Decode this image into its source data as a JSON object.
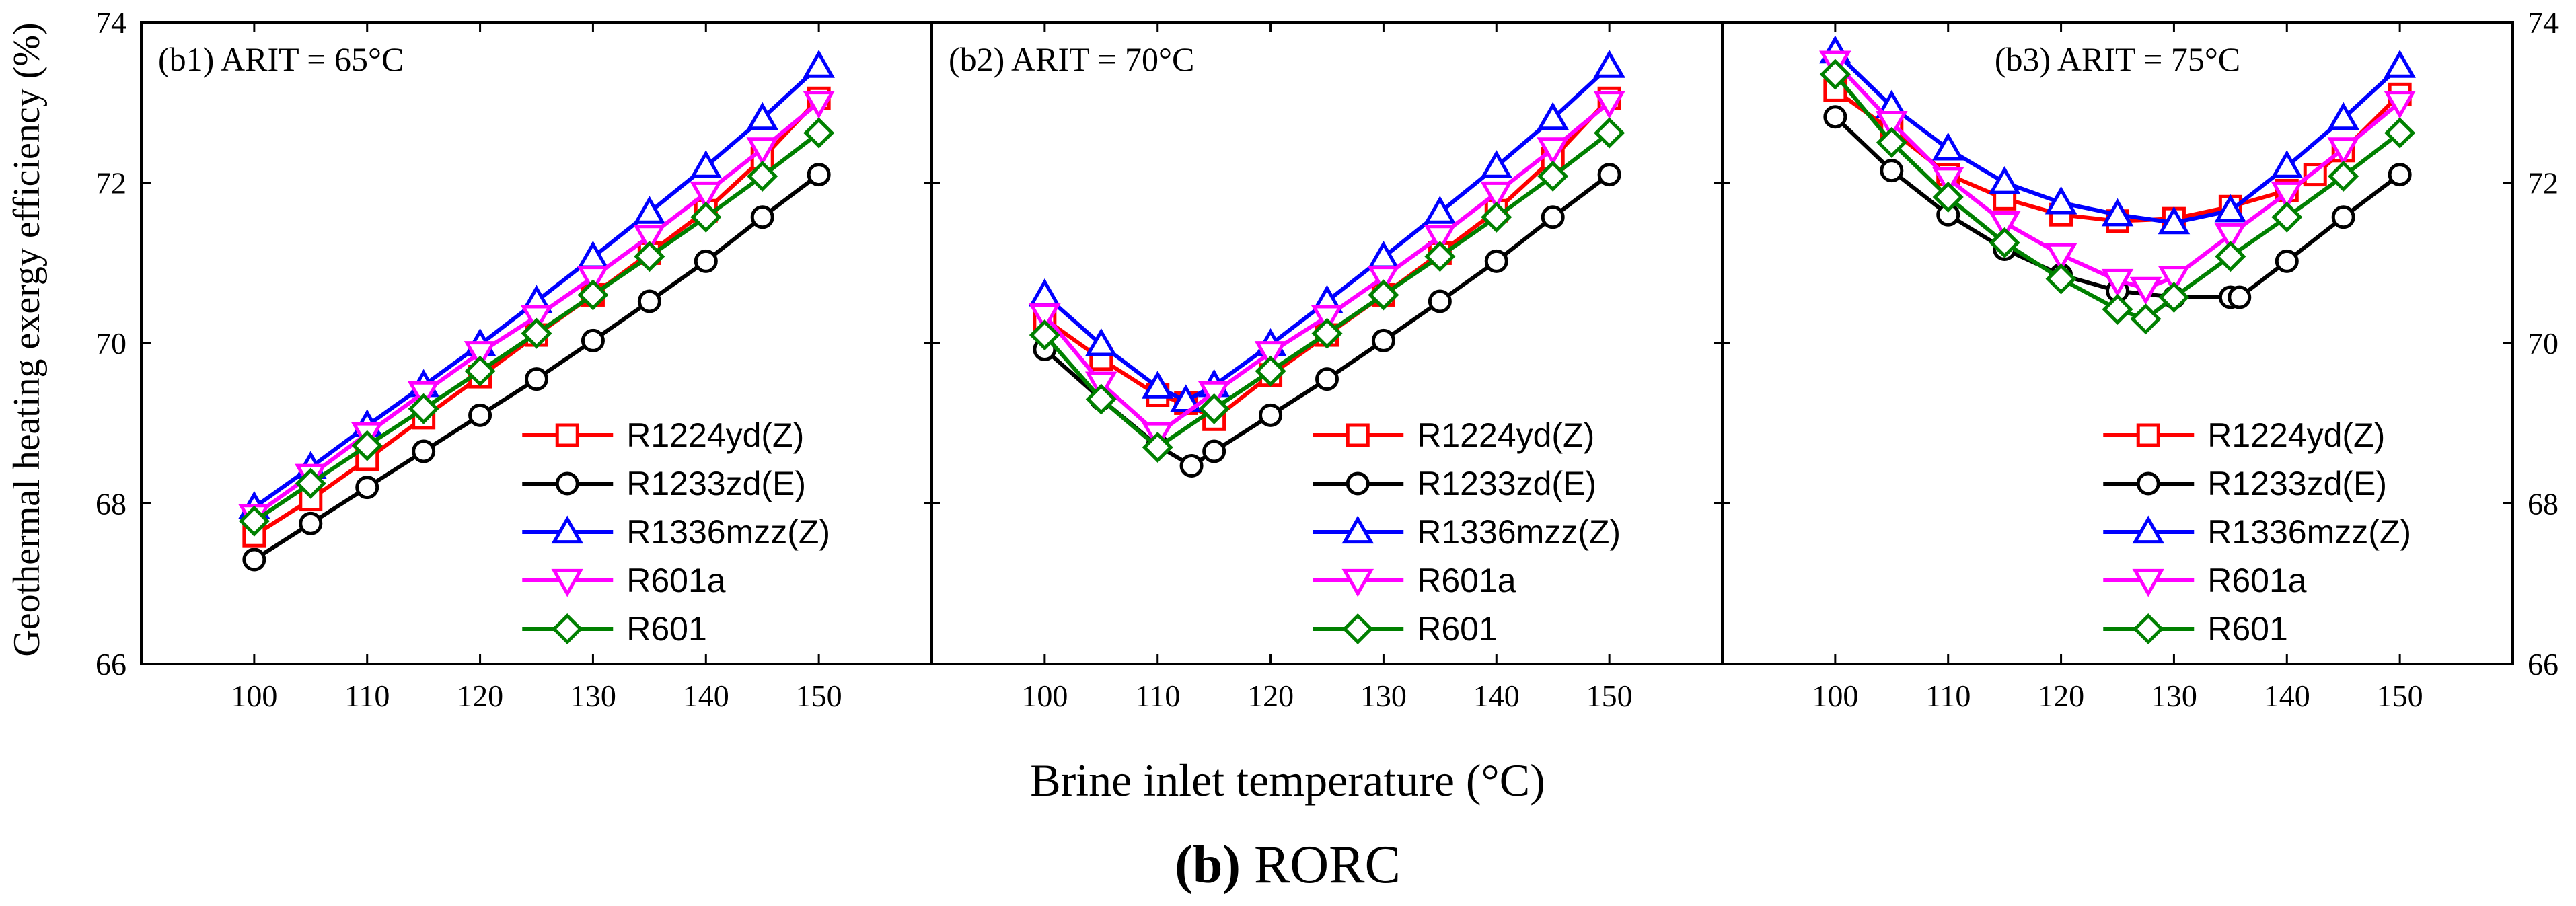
{
  "figure": {
    "ylabel": "Geothermal heating exergy efficiency (%)",
    "xlabel": "Brine inlet temperature (°C)",
    "caption_letter": "b",
    "caption_text": " RORC"
  },
  "colors": {
    "R1224yd(Z)": "#ff0000",
    "R1233zd(E)": "#000000",
    "R1336mzz(Z)": "#0000ff",
    "R601a": "#ff00ff",
    "R601": "#008000"
  },
  "markers": {
    "R1224yd(Z)": "square",
    "R1233zd(E)": "circle",
    "R1336mzz(Z)": "triangle-up",
    "R601a": "triangle-down",
    "R601": "diamond"
  },
  "chart_data": [
    {
      "type": "line",
      "title": "(b1) ARIT = 65°C",
      "xlim": [
        90,
        160
      ],
      "ylim": [
        66,
        74
      ],
      "xticks": [
        100,
        110,
        120,
        130,
        140,
        150
      ],
      "yticks": [
        66,
        68,
        70,
        72,
        74
      ],
      "legend_position": "bottom-right",
      "series": [
        {
          "name": "R1224yd(Z)",
          "x": [
            100,
            105,
            110,
            115,
            120,
            125,
            130,
            135,
            140,
            145,
            150
          ],
          "y": [
            67.6,
            68.05,
            68.55,
            69.07,
            69.58,
            70.1,
            70.6,
            71.12,
            71.65,
            72.3,
            73.05
          ]
        },
        {
          "name": "R1233zd(E)",
          "x": [
            100,
            105,
            110,
            115,
            120,
            125,
            130,
            135,
            140,
            145,
            150
          ],
          "y": [
            67.3,
            67.75,
            68.2,
            68.65,
            69.1,
            69.55,
            70.03,
            70.52,
            71.02,
            71.57,
            72.1
          ]
        },
        {
          "name": "R1336mzz(Z)",
          "x": [
            100,
            105,
            110,
            115,
            120,
            125,
            130,
            135,
            140,
            145,
            150
          ],
          "y": [
            67.95,
            68.45,
            68.97,
            69.47,
            69.98,
            70.52,
            71.07,
            71.63,
            72.2,
            72.8,
            73.45
          ]
        },
        {
          "name": "R601a",
          "x": [
            100,
            105,
            110,
            115,
            120,
            125,
            130,
            135,
            140,
            145,
            150
          ],
          "y": [
            67.85,
            68.35,
            68.87,
            69.38,
            69.88,
            70.33,
            70.82,
            71.33,
            71.87,
            72.42,
            73.0
          ]
        },
        {
          "name": "R601",
          "x": [
            100,
            105,
            110,
            115,
            120,
            125,
            130,
            135,
            140,
            145,
            150
          ],
          "y": [
            67.78,
            68.25,
            68.72,
            69.18,
            69.65,
            70.12,
            70.6,
            71.08,
            71.57,
            72.08,
            72.62
          ]
        }
      ]
    },
    {
      "type": "line",
      "title": "(b2) ARIT = 70°C",
      "xlim": [
        90,
        160
      ],
      "ylim": [
        66,
        74
      ],
      "xticks": [
        100,
        110,
        120,
        130,
        140,
        150
      ],
      "yticks": [
        66,
        68,
        70,
        72,
        74
      ],
      "legend_position": "bottom-right",
      "series": [
        {
          "name": "R1224yd(Z)",
          "x": [
            100,
            105,
            110,
            112.5,
            115,
            120,
            125,
            130,
            135,
            140,
            145,
            150
          ],
          "y": [
            70.3,
            69.8,
            69.35,
            69.25,
            69.05,
            69.6,
            70.1,
            70.6,
            71.12,
            71.65,
            72.3,
            73.05
          ]
        },
        {
          "name": "R1233zd(E)",
          "x": [
            100,
            105,
            110,
            113,
            115,
            120,
            125,
            130,
            135,
            140,
            145,
            150
          ],
          "y": [
            69.92,
            69.3,
            68.72,
            68.47,
            68.65,
            69.1,
            69.55,
            70.03,
            70.52,
            71.02,
            71.57,
            72.1
          ]
        },
        {
          "name": "R1336mzz(Z)",
          "x": [
            100,
            105,
            110,
            112.5,
            115,
            120,
            125,
            130,
            135,
            140,
            145,
            150
          ],
          "y": [
            70.6,
            69.98,
            69.45,
            69.28,
            69.47,
            69.98,
            70.52,
            71.07,
            71.63,
            72.2,
            72.8,
            73.45
          ]
        },
        {
          "name": "R601a",
          "x": [
            100,
            105,
            110,
            115,
            120,
            125,
            130,
            135,
            140,
            145,
            150
          ],
          "y": [
            70.35,
            69.5,
            68.87,
            69.38,
            69.88,
            70.33,
            70.82,
            71.33,
            71.87,
            72.42,
            73.0
          ]
        },
        {
          "name": "R601",
          "x": [
            100,
            105,
            110,
            115,
            120,
            125,
            130,
            135,
            140,
            145,
            150
          ],
          "y": [
            70.1,
            69.3,
            68.7,
            69.18,
            69.65,
            70.12,
            70.6,
            71.08,
            71.57,
            72.08,
            72.62
          ]
        }
      ]
    },
    {
      "type": "line",
      "title": "(b3) ARIT = 75°C",
      "xlim": [
        90,
        160
      ],
      "ylim": [
        66,
        74
      ],
      "xticks": [
        100,
        110,
        120,
        130,
        140,
        150
      ],
      "yticks": [
        66,
        68,
        70,
        72,
        74
      ],
      "legend_position": "bottom-right",
      "series": [
        {
          "name": "R1224yd(Z)",
          "x": [
            100,
            105,
            110,
            115,
            120,
            125,
            130,
            135,
            140,
            142.5,
            145,
            150
          ],
          "y": [
            73.15,
            72.65,
            72.1,
            71.8,
            71.6,
            71.52,
            71.55,
            71.7,
            71.9,
            72.1,
            72.4,
            73.1
          ]
        },
        {
          "name": "R1233zd(E)",
          "x": [
            100,
            105,
            110,
            115,
            120,
            125,
            130,
            135,
            135.8,
            140,
            145,
            150
          ],
          "y": [
            72.82,
            72.15,
            71.6,
            71.17,
            70.85,
            70.65,
            70.57,
            70.57,
            70.57,
            71.02,
            71.57,
            72.1
          ]
        },
        {
          "name": "R1336mzz(Z)",
          "x": [
            100,
            105,
            110,
            115,
            120,
            125,
            130,
            135,
            140,
            145,
            150
          ],
          "y": [
            73.63,
            72.95,
            72.42,
            72.0,
            71.75,
            71.6,
            71.5,
            71.65,
            72.2,
            72.8,
            73.45
          ]
        },
        {
          "name": "R601a",
          "x": [
            100,
            105,
            110,
            115,
            120,
            125,
            127.5,
            130,
            135,
            140,
            145,
            150
          ],
          "y": [
            73.5,
            72.75,
            72.05,
            71.5,
            71.1,
            70.78,
            70.68,
            70.82,
            71.35,
            71.87,
            72.42,
            73.0
          ]
        },
        {
          "name": "R601",
          "x": [
            100,
            105,
            110,
            115,
            120,
            125,
            127.5,
            130,
            135,
            140,
            145,
            150
          ],
          "y": [
            73.35,
            72.5,
            71.82,
            71.25,
            70.8,
            70.42,
            70.3,
            70.57,
            71.08,
            71.57,
            72.08,
            72.62
          ]
        }
      ]
    }
  ]
}
